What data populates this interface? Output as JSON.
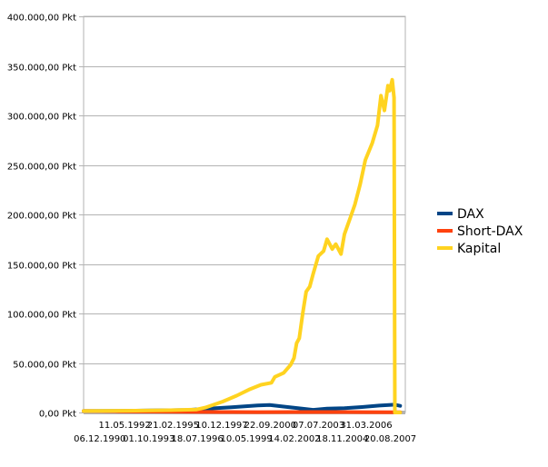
{
  "chart_data": {
    "type": "line",
    "title": "",
    "xlabel": "",
    "ylabel": "",
    "ylim": [
      0,
      400000
    ],
    "y_ticks": [
      0,
      50000,
      100000,
      150000,
      200000,
      250000,
      300000,
      350000,
      400000
    ],
    "y_tick_labels": [
      "0,00 Pkt",
      "50.000,00 Pkt",
      "100.000,00 Pkt",
      "150.000,00 Pkt",
      "200.000,00 Pkt",
      "250.000,00 Pkt",
      "300.000,00 Pkt",
      "350.000,00 Pkt",
      "400.000,00 Pkt"
    ],
    "x_range": [
      1990.0,
      2008.5
    ],
    "x_tick_labels_row1": [
      {
        "label": "11.05.1992",
        "x": 1992.36
      },
      {
        "label": "21.02.1995",
        "x": 1995.14
      },
      {
        "label": "10.12.1997",
        "x": 1997.94
      },
      {
        "label": "22.09.2000",
        "x": 2000.73
      },
      {
        "label": "07.07.2003",
        "x": 2003.51
      },
      {
        "label": "31.03.2006",
        "x": 2006.25
      }
    ],
    "x_tick_labels_row2": [
      {
        "label": "06.12.1990",
        "x": 1990.93
      },
      {
        "label": "01.10.1993",
        "x": 1993.75
      },
      {
        "label": "18.07.1996",
        "x": 1996.54
      },
      {
        "label": "10.05.1999",
        "x": 1999.36
      },
      {
        "label": "14.02.2002",
        "x": 2002.12
      },
      {
        "label": "18.11.2004",
        "x": 2004.88
      },
      {
        "label": "20.08.2007",
        "x": 2007.64
      }
    ],
    "legend_position": "right",
    "grid": true,
    "series": [
      {
        "name": "DAX",
        "color": "#004586",
        "points": [
          [
            1990.0,
            1500
          ],
          [
            1992.0,
            1600
          ],
          [
            1994.0,
            2100
          ],
          [
            1996.0,
            2500
          ],
          [
            1997.5,
            4200
          ],
          [
            1998.5,
            5200
          ],
          [
            2000.0,
            7200
          ],
          [
            2000.7,
            7500
          ],
          [
            2001.5,
            6000
          ],
          [
            2002.5,
            4000
          ],
          [
            2003.2,
            2700
          ],
          [
            2004.0,
            3900
          ],
          [
            2005.0,
            4300
          ],
          [
            2006.0,
            5500
          ],
          [
            2007.0,
            7000
          ],
          [
            2007.9,
            7900
          ],
          [
            2008.2,
            6700
          ]
        ]
      },
      {
        "name": "Short-DAX",
        "color": "#ff420e",
        "points": [
          [
            1990.0,
            1500
          ],
          [
            1992.0,
            1200
          ],
          [
            1994.0,
            900
          ],
          [
            1996.0,
            700
          ],
          [
            1998.0,
            500
          ],
          [
            2000.0,
            350
          ],
          [
            2002.0,
            500
          ],
          [
            2004.0,
            450
          ],
          [
            2006.0,
            350
          ],
          [
            2008.2,
            300
          ]
        ]
      },
      {
        "name": "Kapital",
        "color": "#ffd320",
        "points": [
          [
            1990.0,
            1500
          ],
          [
            1993.0,
            1800
          ],
          [
            1995.0,
            2300
          ],
          [
            1996.5,
            3000
          ],
          [
            1997.0,
            5000
          ],
          [
            1998.0,
            11000
          ],
          [
            1998.8,
            17000
          ],
          [
            1999.5,
            23000
          ],
          [
            2000.2,
            28000
          ],
          [
            2000.8,
            30000
          ],
          [
            2001.0,
            36000
          ],
          [
            2001.5,
            40000
          ],
          [
            2001.9,
            48000
          ],
          [
            2002.1,
            55000
          ],
          [
            2002.25,
            70000
          ],
          [
            2002.4,
            75000
          ],
          [
            2002.6,
            100000
          ],
          [
            2002.8,
            122000
          ],
          [
            2003.0,
            127000
          ],
          [
            2003.2,
            140000
          ],
          [
            2003.5,
            158000
          ],
          [
            2003.8,
            163000
          ],
          [
            2004.0,
            175000
          ],
          [
            2004.3,
            165000
          ],
          [
            2004.5,
            170000
          ],
          [
            2004.8,
            160000
          ],
          [
            2005.0,
            180000
          ],
          [
            2005.3,
            195000
          ],
          [
            2005.6,
            210000
          ],
          [
            2005.9,
            230000
          ],
          [
            2006.2,
            255000
          ],
          [
            2006.6,
            272000
          ],
          [
            2006.9,
            290000
          ],
          [
            2007.1,
            320000
          ],
          [
            2007.3,
            305000
          ],
          [
            2007.5,
            330000
          ],
          [
            2007.6,
            325000
          ],
          [
            2007.75,
            336000
          ],
          [
            2007.85,
            318000
          ],
          [
            2007.9,
            0
          ],
          [
            2008.2,
            0
          ]
        ]
      }
    ]
  }
}
